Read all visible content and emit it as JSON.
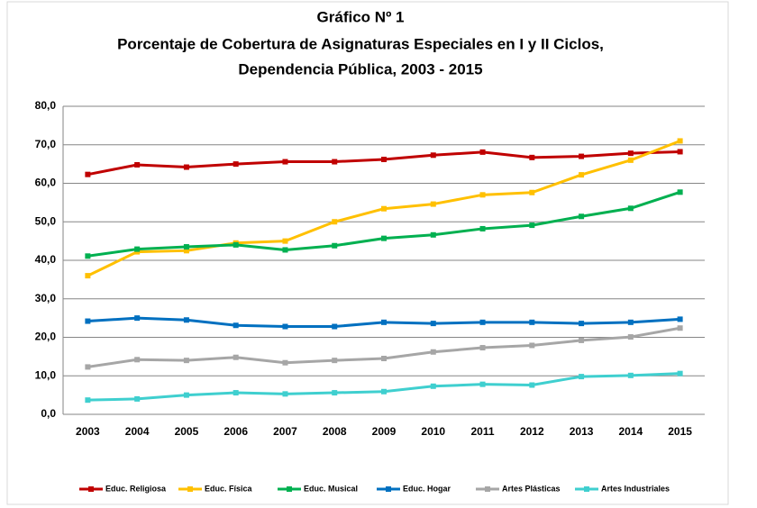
{
  "chart_data": {
    "type": "line",
    "title": "Gráfico Nº 1",
    "subtitle": [
      "Porcentaje de Cobertura de Asignaturas Especiales en I y II Ciclos,",
      "Dependencia Pública, 2003 - 2015"
    ],
    "categories": [
      "2003",
      "2004",
      "2005",
      "2006",
      "2007",
      "2008",
      "2009",
      "2010",
      "2011",
      "2012",
      "2013",
      "2014",
      "2015"
    ],
    "series": [
      {
        "name": "Educ. Religiosa",
        "color": "#c00000",
        "values": [
          62.3,
          64.8,
          64.2,
          65.0,
          65.6,
          65.6,
          66.2,
          67.3,
          68.1,
          66.7,
          67.0,
          67.8,
          68.2
        ]
      },
      {
        "name": "Educ. Física",
        "color": "#ffc000",
        "values": [
          36.0,
          42.2,
          42.5,
          44.5,
          45.0,
          50.0,
          53.4,
          54.6,
          57.0,
          57.6,
          62.2,
          66.0,
          71.0
        ]
      },
      {
        "name": "Educ. Musical",
        "color": "#00b050",
        "values": [
          41.1,
          42.9,
          43.5,
          44.0,
          42.7,
          43.8,
          45.7,
          46.6,
          48.2,
          49.1,
          51.4,
          53.5,
          57.7
        ]
      },
      {
        "name": "Educ. Hogar",
        "color": "#0070c0",
        "values": [
          24.2,
          25.0,
          24.5,
          23.1,
          22.8,
          22.8,
          23.9,
          23.6,
          23.9,
          23.9,
          23.6,
          23.9,
          24.7
        ]
      },
      {
        "name": "Artes Plásticas",
        "color": "#a6a6a6",
        "values": [
          12.3,
          14.2,
          14.0,
          14.8,
          13.4,
          14.0,
          14.5,
          16.2,
          17.3,
          17.9,
          19.2,
          20.1,
          22.4
        ]
      },
      {
        "name": "Artes Industriales",
        "color": "#3fcfcf",
        "values": [
          3.7,
          4.0,
          5.0,
          5.6,
          5.3,
          5.6,
          5.9,
          7.3,
          7.8,
          7.6,
          9.8,
          10.1,
          10.6
        ]
      }
    ],
    "ylim": [
      0,
      80
    ],
    "yticks": [
      {
        "value": 0,
        "label": "0,0"
      },
      {
        "value": 10,
        "label": "10,0"
      },
      {
        "value": 20,
        "label": "20,0"
      },
      {
        "value": 30,
        "label": "30,0"
      },
      {
        "value": 40,
        "label": "40,0"
      },
      {
        "value": 50,
        "label": "50,0"
      },
      {
        "value": 60,
        "label": "60,0"
      },
      {
        "value": 70,
        "label": "70,0"
      },
      {
        "value": 80,
        "label": "80,0"
      }
    ],
    "grid": true,
    "legend": "bottom"
  }
}
